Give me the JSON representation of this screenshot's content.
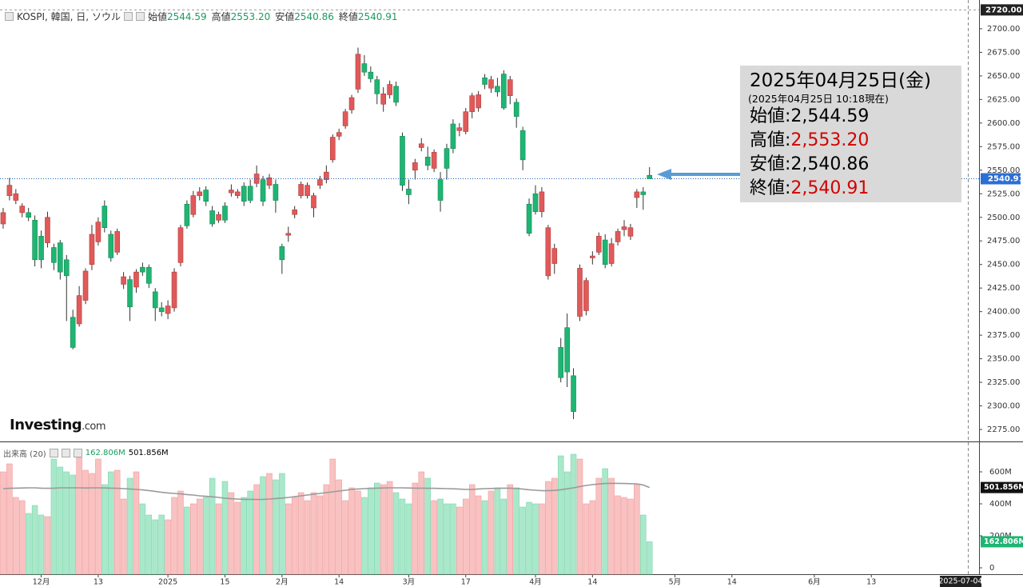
{
  "header": {
    "title": "KOSPI, 韓国, 日, ソウル",
    "value_color": "#1a9b5e",
    "stats": [
      {
        "label": "始値",
        "value": "2544.59"
      },
      {
        "label": "高値",
        "value": "2553.20"
      },
      {
        "label": "安値",
        "value": "2540.86"
      },
      {
        "label": "終値",
        "value": "2540.91"
      }
    ]
  },
  "info_box": {
    "date": "2025年04月25日(金)",
    "note": "(2025年04月25日 10:18現在)",
    "rows": [
      {
        "label": "始値:",
        "value": "2,544.59",
        "color": "#000000"
      },
      {
        "label": "高値:",
        "value": "2,553.20",
        "color": "#d40000"
      },
      {
        "label": "安値:",
        "value": "2,540.86",
        "color": "#000000"
      },
      {
        "label": "終値:",
        "value": "2,540.91",
        "color": "#d40000"
      }
    ]
  },
  "watermark": {
    "brand": "Investing",
    "suffix": ".com"
  },
  "volume_header": {
    "title": "出来高 (20)",
    "volume": "162.806M",
    "volume_color": "#1a9b5e",
    "average": "501.856M"
  },
  "cursor_date": "2025-07-04",
  "chart_data": {
    "type": "candlestick",
    "up_color": "#e05a5a",
    "down_color": "#1fb573",
    "volume_up_color": "#f9c2c2",
    "volume_down_color": "#a9e8ca",
    "ma_color": "#9a9a9a",
    "xlim": [
      -0.5,
      154
    ],
    "xticks": [
      {
        "value": 6,
        "label": "12月"
      },
      {
        "value": 15,
        "label": "13"
      },
      {
        "value": 26,
        "label": "2025"
      },
      {
        "value": 35,
        "label": "15"
      },
      {
        "value": 44,
        "label": "2月"
      },
      {
        "value": 53,
        "label": "14"
      },
      {
        "value": 64,
        "label": "3月"
      },
      {
        "value": 73,
        "label": "17"
      },
      {
        "value": 84,
        "label": "4月"
      },
      {
        "value": 93,
        "label": "14"
      },
      {
        "value": 106,
        "label": "5月"
      },
      {
        "value": 115,
        "label": "14"
      },
      {
        "value": 128,
        "label": "6月"
      },
      {
        "value": 137,
        "label": "13"
      }
    ],
    "ylim": [
      2262.3,
      2730.5
    ],
    "yticks": [
      {
        "value": 2275,
        "label": "2275.00"
      },
      {
        "value": 2300,
        "label": "2300.00"
      },
      {
        "value": 2325,
        "label": "2325.00"
      },
      {
        "value": 2350,
        "label": "2350.00"
      },
      {
        "value": 2375,
        "label": "2375.00"
      },
      {
        "value": 2400,
        "label": "2400.00"
      },
      {
        "value": 2425,
        "label": "2425.00"
      },
      {
        "value": 2450,
        "label": "2450.00"
      },
      {
        "value": 2475,
        "label": "2475.00"
      },
      {
        "value": 2500,
        "label": "2500.00"
      },
      {
        "value": 2525,
        "label": "2525.00"
      },
      {
        "value": 2550,
        "label": "2550.00"
      },
      {
        "value": 2575,
        "label": "2575.00"
      },
      {
        "value": 2600,
        "label": "2600.00"
      },
      {
        "value": 2625,
        "label": "2625.00"
      },
      {
        "value": 2650,
        "label": "2650.00"
      },
      {
        "value": 2675,
        "label": "2675.00"
      },
      {
        "value": 2700,
        "label": "2700.00"
      }
    ],
    "high_marker": {
      "value": 2720,
      "label": "2720.00"
    },
    "last_price": {
      "value": 2540.91,
      "label": "2540.91"
    },
    "open": [
      2493,
      2523,
      2518,
      2505,
      2505,
      2497,
      2480,
      2473,
      2468,
      2473,
      2455,
      2394,
      2387,
      2412,
      2450,
      2474,
      2512,
      2482,
      2463,
      2429,
      2434,
      2426,
      2447,
      2447,
      2421,
      2404,
      2398,
      2404,
      2452,
      2514,
      2503,
      2523,
      2529,
      2507,
      2497,
      2512,
      2526,
      2523,
      2533,
      2533,
      2536,
      2540,
      2534,
      2535,
      2469,
      2481,
      2503,
      2523,
      2523,
      2510,
      2534,
      2540,
      2561,
      2586,
      2597,
      2614,
      2636,
      2663,
      2654,
      2646,
      2620,
      2630,
      2639,
      2586,
      2530,
      2550,
      2574,
      2564,
      2552,
      2540,
      2573,
      2599,
      2592,
      2591,
      2612,
      2616,
      2648,
      2637,
      2639,
      2652,
      2629,
      2622,
      2592,
      2514,
      2525,
      2506,
      2438,
      2451,
      2362,
      2383,
      2332,
      2395,
      2401,
      2457,
      2463,
      2476,
      2451,
      2474,
      2487,
      2480,
      2521,
      2527,
      2544.59
    ],
    "high": [
      2510,
      2542,
      2530,
      2515,
      2510,
      2502,
      2486,
      2506,
      2472,
      2476,
      2460,
      2402,
      2427,
      2446,
      2492,
      2500,
      2518,
      2486,
      2488,
      2442,
      2438,
      2445,
      2452,
      2450,
      2425,
      2410,
      2412,
      2446,
      2492,
      2518,
      2528,
      2532,
      2533,
      2512,
      2506,
      2516,
      2535,
      2530,
      2537,
      2540,
      2555,
      2544,
      2546,
      2540,
      2472,
      2490,
      2512,
      2538,
      2537,
      2526,
      2544,
      2555,
      2588,
      2594,
      2615,
      2630,
      2680,
      2672,
      2660,
      2650,
      2638,
      2645,
      2644,
      2590,
      2540,
      2562,
      2584,
      2575,
      2572,
      2548,
      2578,
      2604,
      2600,
      2616,
      2632,
      2634,
      2652,
      2650,
      2648,
      2656,
      2650,
      2626,
      2596,
      2520,
      2534,
      2532,
      2492,
      2472,
      2372,
      2398,
      2340,
      2450,
      2436,
      2464,
      2484,
      2482,
      2478,
      2488,
      2497,
      2493,
      2530,
      2532,
      2553.2
    ],
    "low": [
      2488,
      2518,
      2514,
      2500,
      2496,
      2448,
      2446,
      2468,
      2444,
      2434,
      2390,
      2360,
      2384,
      2408,
      2444,
      2470,
      2484,
      2453,
      2460,
      2424,
      2390,
      2420,
      2438,
      2425,
      2390,
      2395,
      2392,
      2400,
      2448,
      2488,
      2500,
      2518,
      2512,
      2490,
      2494,
      2494,
      2522,
      2520,
      2512,
      2515,
      2532,
      2512,
      2530,
      2505,
      2440,
      2474,
      2499,
      2520,
      2520,
      2500,
      2530,
      2536,
      2558,
      2582,
      2594,
      2610,
      2632,
      2650,
      2643,
      2620,
      2612,
      2626,
      2618,
      2528,
      2514,
      2540,
      2570,
      2550,
      2548,
      2506,
      2540,
      2568,
      2586,
      2588,
      2605,
      2612,
      2636,
      2632,
      2628,
      2614,
      2620,
      2595,
      2550,
      2480,
      2503,
      2500,
      2434,
      2440,
      2325,
      2320,
      2286,
      2390,
      2396,
      2450,
      2460,
      2446,
      2448,
      2470,
      2480,
      2476,
      2510,
      2508,
      2540.86
    ],
    "close": [
      2505,
      2534,
      2525,
      2512,
      2500,
      2455,
      2455,
      2500,
      2452,
      2442,
      2438,
      2362,
      2417,
      2443,
      2482,
      2495,
      2489,
      2457,
      2485,
      2437,
      2405,
      2442,
      2442,
      2430,
      2404,
      2400,
      2406,
      2442,
      2489,
      2491,
      2523,
      2527,
      2517,
      2493,
      2503,
      2497,
      2529,
      2527,
      2517,
      2518,
      2546,
      2517,
      2542,
      2518,
      2455,
      2483,
      2508,
      2535,
      2534,
      2523,
      2540,
      2548,
      2585,
      2590,
      2612,
      2627,
      2673,
      2654,
      2647,
      2631,
      2631,
      2641,
      2622,
      2534,
      2524,
      2558,
      2578,
      2555,
      2569,
      2518,
      2552,
      2573,
      2595,
      2612,
      2629,
      2630,
      2641,
      2646,
      2633,
      2616,
      2646,
      2607,
      2561,
      2483,
      2506,
      2527,
      2489,
      2467,
      2330,
      2336,
      2294,
      2446,
      2433,
      2459,
      2480,
      2450,
      2472,
      2485,
      2490,
      2489,
      2527,
      2524,
      2540.91
    ],
    "vlim": [
      -40,
      785
    ],
    "vticks": [
      0,
      {
        "value": 200,
        "label": "200M"
      },
      {
        "value": 400,
        "label": "400M"
      },
      {
        "value": 600,
        "label": "600M"
      }
    ],
    "volume": [
      600,
      650,
      440,
      420,
      340,
      390,
      330,
      320,
      680,
      630,
      600,
      580,
      690,
      610,
      590,
      680,
      520,
      600,
      610,
      430,
      560,
      600,
      400,
      330,
      300,
      330,
      300,
      440,
      480,
      380,
      400,
      430,
      440,
      560,
      400,
      540,
      470,
      410,
      440,
      480,
      520,
      570,
      590,
      550,
      590,
      400,
      440,
      470,
      420,
      470,
      450,
      520,
      680,
      550,
      420,
      500,
      480,
      440,
      500,
      530,
      520,
      540,
      470,
      430,
      400,
      530,
      600,
      560,
      420,
      430,
      400,
      400,
      380,
      430,
      520,
      450,
      420,
      480,
      500,
      430,
      520,
      500,
      380,
      410,
      400,
      400,
      540,
      560,
      700,
      600,
      710,
      680,
      400,
      420,
      560,
      620,
      560,
      450,
      440,
      430,
      520,
      330,
      162.806
    ],
    "volume_value_labels": {
      "last": "162.806M",
      "ma_last": "501.856M"
    },
    "ma20": [
      495,
      497,
      498,
      499,
      500,
      500,
      498,
      497,
      498,
      500,
      500,
      500,
      500,
      499,
      500,
      500,
      499,
      498,
      497,
      495,
      493,
      490,
      487,
      483,
      478,
      472,
      468,
      465,
      462,
      458,
      455,
      450,
      447,
      444,
      440,
      435,
      432,
      430,
      428,
      428,
      427,
      428,
      430,
      433,
      436,
      440,
      445,
      450,
      455,
      460,
      465,
      470,
      475,
      480,
      485,
      490,
      493,
      495,
      497,
      498,
      499,
      500,
      500,
      500,
      499,
      498,
      498,
      497,
      497,
      496,
      495,
      494,
      492,
      490,
      490,
      493,
      495,
      496,
      497,
      498,
      498,
      496,
      492,
      488,
      485,
      482,
      482,
      484,
      488,
      494,
      500,
      508,
      515,
      520,
      524,
      527,
      528,
      528,
      527,
      526,
      525,
      518,
      501.856
    ]
  }
}
